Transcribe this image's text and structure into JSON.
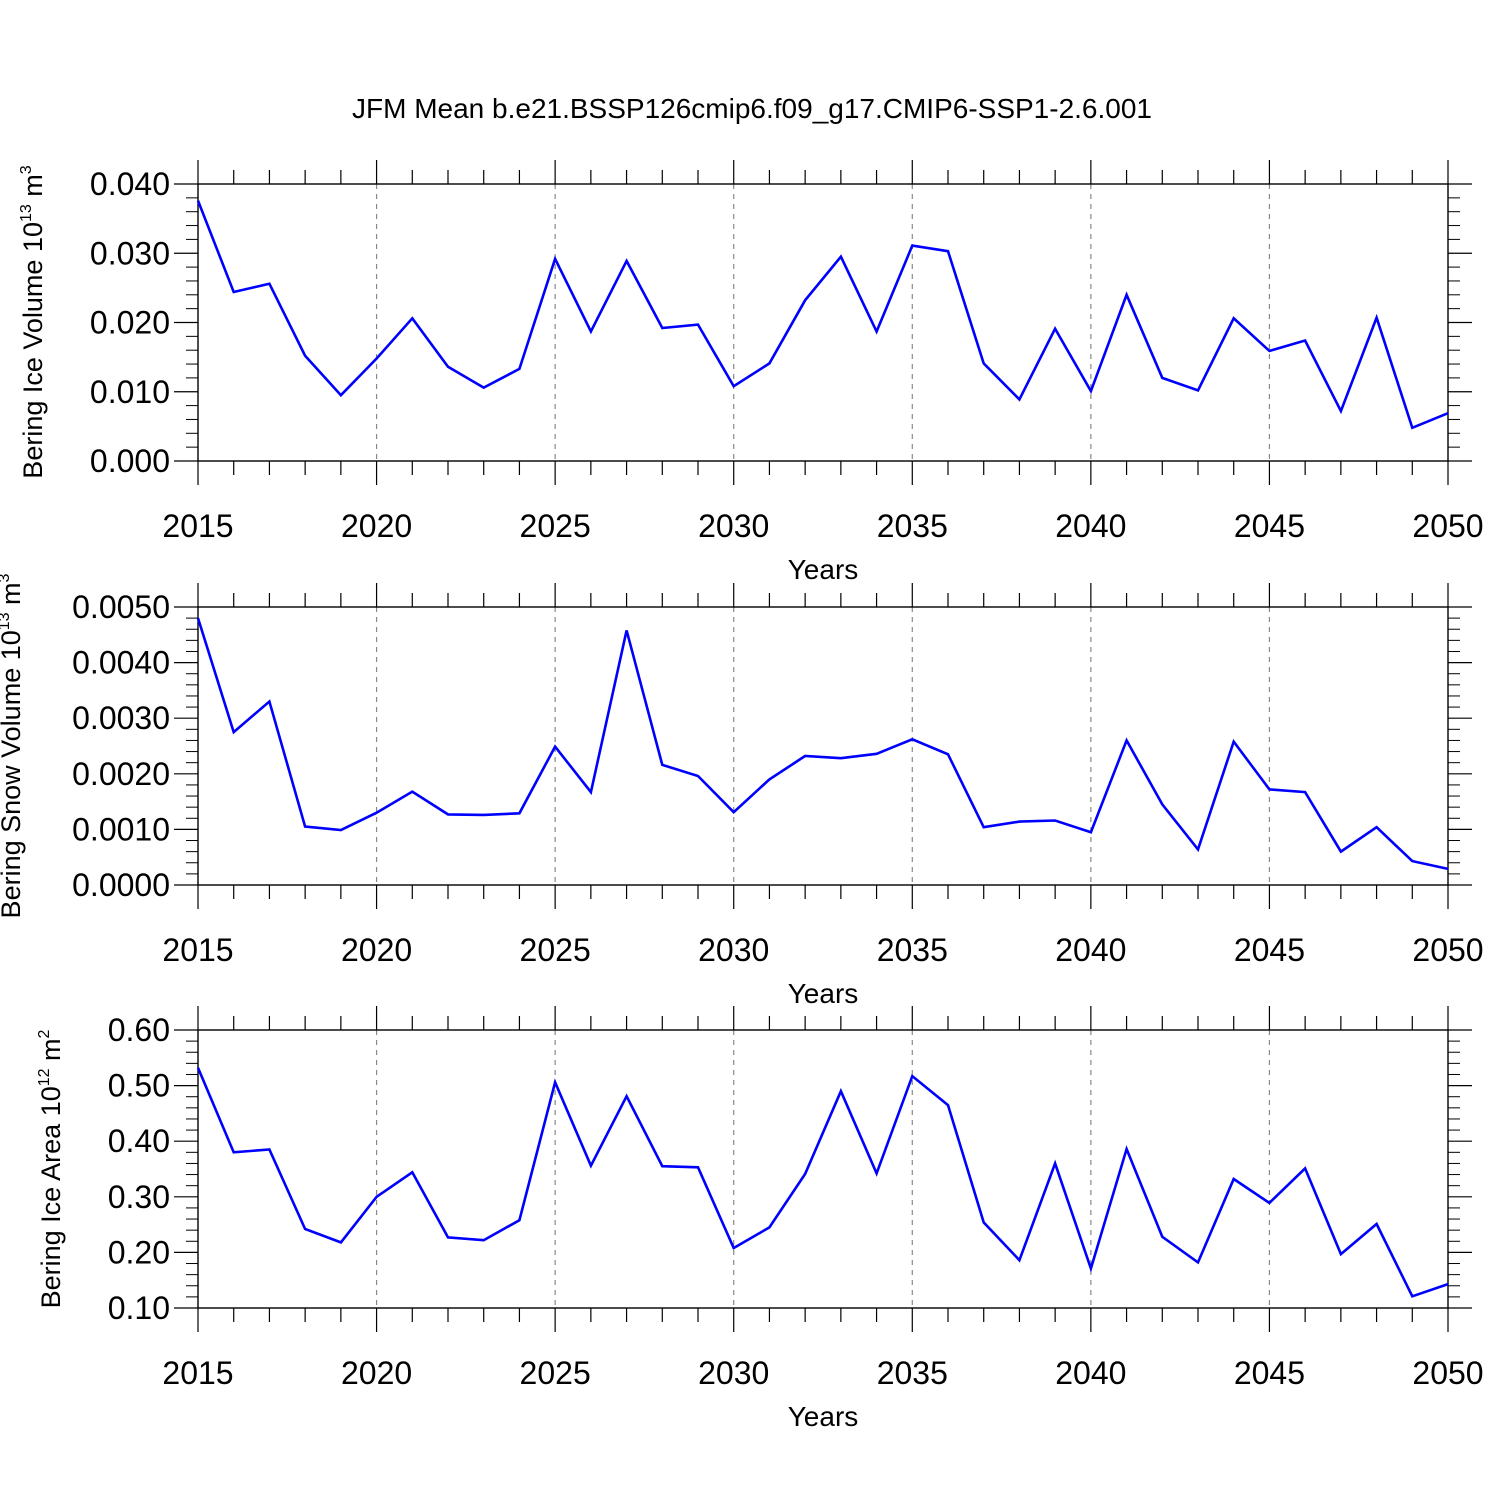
{
  "title": "JFM Mean b.e21.BSSP126cmip6.f09_g17.CMIP6-SSP1-2.6.001",
  "line_color": "#0000ff",
  "grid_color": "#888888",
  "chart_data": [
    {
      "type": "line",
      "ylabel": "Bering Ice Volume 10",
      "ylabel_exp": "13",
      "ylabel_unit": " m",
      "ylabel_unit_exp": "3",
      "xlabel": "Years",
      "xlim": [
        2015,
        2050
      ],
      "ylim": [
        0.0,
        0.04
      ],
      "yticks": [
        0.0,
        0.01,
        0.02,
        0.03,
        0.04
      ],
      "ytick_labels": [
        "0.000",
        "0.010",
        "0.020",
        "0.030",
        "0.040"
      ],
      "xticks": [
        2015,
        2020,
        2025,
        2030,
        2035,
        2040,
        2045,
        2050
      ],
      "xtick_labels": [
        "2015",
        "2020",
        "2025",
        "2030",
        "2035",
        "2040",
        "2045",
        "2050"
      ],
      "x": [
        2015,
        2016,
        2017,
        2018,
        2019,
        2020,
        2021,
        2022,
        2023,
        2024,
        2025,
        2026,
        2027,
        2028,
        2029,
        2030,
        2031,
        2032,
        2033,
        2034,
        2035,
        2036,
        2037,
        2038,
        2039,
        2040,
        2041,
        2042,
        2043,
        2044,
        2045,
        2046,
        2047,
        2048,
        2049,
        2050
      ],
      "series": [
        {
          "values": [
            0.0376,
            0.0244,
            0.0256,
            0.0152,
            0.0095,
            0.0148,
            0.0206,
            0.0136,
            0.0106,
            0.0133,
            0.0292,
            0.0187,
            0.0289,
            0.0192,
            0.0197,
            0.0108,
            0.0141,
            0.0232,
            0.0295,
            0.0187,
            0.0311,
            0.0303,
            0.0141,
            0.0089,
            0.0191,
            0.0101,
            0.024,
            0.012,
            0.0102,
            0.0206,
            0.0159,
            0.0174,
            0.0072,
            0.0207,
            0.0048,
            0.0069
          ]
        }
      ],
      "grid": "vertical dashed at major x ticks"
    },
    {
      "type": "line",
      "ylabel": "Bering Snow Volume 10",
      "ylabel_exp": "13",
      "ylabel_unit": " m",
      "ylabel_unit_exp": "3",
      "xlabel": "Years",
      "xlim": [
        2015,
        2050
      ],
      "ylim": [
        0.0,
        0.005
      ],
      "yticks": [
        0.0,
        0.001,
        0.002,
        0.003,
        0.004,
        0.005
      ],
      "ytick_labels": [
        "0.0000",
        "0.0010",
        "0.0020",
        "0.0030",
        "0.0040",
        "0.0050"
      ],
      "xticks": [
        2015,
        2020,
        2025,
        2030,
        2035,
        2040,
        2045,
        2050
      ],
      "xtick_labels": [
        "2015",
        "2020",
        "2025",
        "2030",
        "2035",
        "2040",
        "2045",
        "2050"
      ],
      "x": [
        2015,
        2016,
        2017,
        2018,
        2019,
        2020,
        2021,
        2022,
        2023,
        2024,
        2025,
        2026,
        2027,
        2028,
        2029,
        2030,
        2031,
        2032,
        2033,
        2034,
        2035,
        2036,
        2037,
        2038,
        2039,
        2040,
        2041,
        2042,
        2043,
        2044,
        2045,
        2046,
        2047,
        2048,
        2049,
        2050
      ],
      "series": [
        {
          "values": [
            0.0048,
            0.00275,
            0.0033,
            0.00105,
            0.00099,
            0.0013,
            0.00168,
            0.00127,
            0.00126,
            0.00129,
            0.00249,
            0.00167,
            0.00458,
            0.00216,
            0.00196,
            0.00131,
            0.0019,
            0.00232,
            0.00228,
            0.00236,
            0.00262,
            0.00235,
            0.00104,
            0.00114,
            0.00116,
            0.00095,
            0.0026,
            0.00145,
            0.00064,
            0.00258,
            0.00172,
            0.00167,
            0.0006,
            0.00104,
            0.00043,
            0.00029
          ]
        }
      ],
      "grid": "vertical dashed at major x ticks"
    },
    {
      "type": "line",
      "ylabel": "Bering Ice Area 10",
      "ylabel_exp": "12",
      "ylabel_unit": " m",
      "ylabel_unit_exp": "2",
      "xlabel": "Years",
      "xlim": [
        2015,
        2050
      ],
      "ylim": [
        0.1,
        0.6
      ],
      "yticks": [
        0.1,
        0.2,
        0.3,
        0.4,
        0.5,
        0.6
      ],
      "ytick_labels": [
        "0.10",
        "0.20",
        "0.30",
        "0.40",
        "0.50",
        "0.60"
      ],
      "xticks": [
        2015,
        2020,
        2025,
        2030,
        2035,
        2040,
        2045,
        2050
      ],
      "xtick_labels": [
        "2015",
        "2020",
        "2025",
        "2030",
        "2035",
        "2040",
        "2045",
        "2050"
      ],
      "x": [
        2015,
        2016,
        2017,
        2018,
        2019,
        2020,
        2021,
        2022,
        2023,
        2024,
        2025,
        2026,
        2027,
        2028,
        2029,
        2030,
        2031,
        2032,
        2033,
        2034,
        2035,
        2036,
        2037,
        2038,
        2039,
        2040,
        2041,
        2042,
        2043,
        2044,
        2045,
        2046,
        2047,
        2048,
        2049,
        2050
      ],
      "series": [
        {
          "values": [
            0.532,
            0.38,
            0.385,
            0.242,
            0.218,
            0.3,
            0.344,
            0.227,
            0.222,
            0.258,
            0.506,
            0.356,
            0.481,
            0.355,
            0.353,
            0.208,
            0.245,
            0.341,
            0.49,
            0.342,
            0.517,
            0.465,
            0.254,
            0.186,
            0.36,
            0.171,
            0.386,
            0.228,
            0.182,
            0.332,
            0.289,
            0.351,
            0.197,
            0.251,
            0.121,
            0.143
          ]
        }
      ],
      "grid": "vertical dashed at major x ticks"
    }
  ]
}
